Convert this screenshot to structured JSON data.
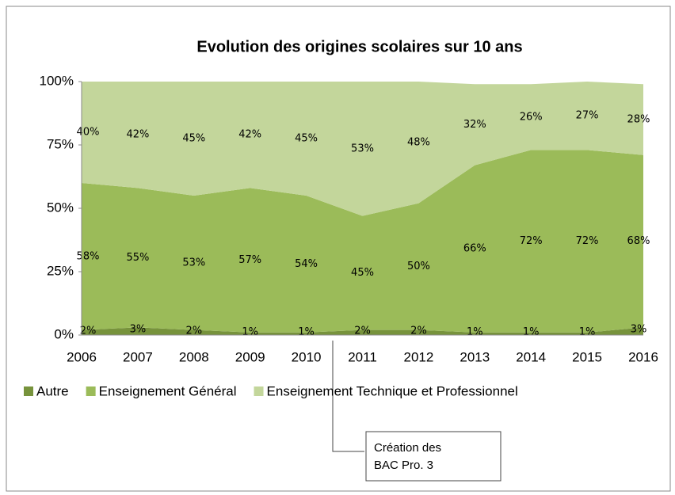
{
  "chart_data": {
    "type": "stacked_area",
    "title": "Evolution des origines scolaires sur 10 ans",
    "categories": [
      "2006",
      "2007",
      "2008",
      "2009",
      "2010",
      "2011",
      "2012",
      "2013",
      "2014",
      "2015",
      "2016"
    ],
    "series": [
      {
        "name": "Autre",
        "color": "#77933c",
        "values": [
          2,
          3,
          2,
          1,
          1,
          2,
          2,
          1,
          1,
          1,
          3
        ],
        "value_labels": [
          "2%",
          "3%",
          "2%",
          "1%",
          "1%",
          "2%",
          "2%",
          "1%",
          "1%",
          "1%",
          "3%"
        ]
      },
      {
        "name": "Enseignement Général",
        "color": "#9bbb59",
        "values": [
          58,
          55,
          53,
          57,
          54,
          45,
          50,
          66,
          72,
          72,
          68
        ],
        "value_labels": [
          "58%",
          "55%",
          "53%",
          "57%",
          "54%",
          "45%",
          "50%",
          "66%",
          "72%",
          "72%",
          "68%"
        ]
      },
      {
        "name": "Enseignement Technique et Professionnel",
        "color": "#c3d69b",
        "values": [
          40,
          42,
          45,
          42,
          45,
          53,
          48,
          32,
          26,
          27,
          28
        ],
        "value_labels": [
          "40%",
          "42%",
          "45%",
          "42%",
          "45%",
          "53%",
          "48%",
          "32%",
          "26%",
          "27%",
          "28%"
        ]
      }
    ],
    "ylim": [
      0,
      100
    ],
    "yticks": [
      {
        "value": 0,
        "label": "0%"
      },
      {
        "value": 25,
        "label": "25%"
      },
      {
        "value": 50,
        "label": "50%"
      },
      {
        "value": 75,
        "label": "75%"
      },
      {
        "value": 100,
        "label": "100%"
      }
    ],
    "annotation": [
      "Création des",
      "BAC Pro. 3"
    ]
  }
}
